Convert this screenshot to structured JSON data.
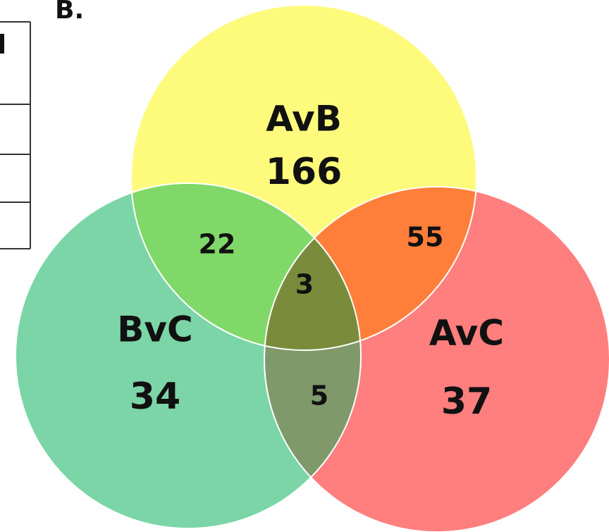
{
  "panel_label": "B.",
  "sets": [
    {
      "key": "a",
      "name": "AvB",
      "count": "166",
      "color": "#FEFB7C"
    },
    {
      "key": "b",
      "name": "BvC",
      "count": "34",
      "color": "#7BD5A7"
    },
    {
      "key": "c",
      "name": "AvC",
      "count": "37",
      "color": "#FF7E7E"
    }
  ],
  "overlaps": {
    "ab": "22",
    "ac": "55",
    "bc": "5",
    "abc": "3"
  },
  "region_colors": {
    "ab": "#80D868",
    "ac": "#FF7F3A",
    "bc": "#7F996B",
    "abc": "#7A8C3C"
  }
}
